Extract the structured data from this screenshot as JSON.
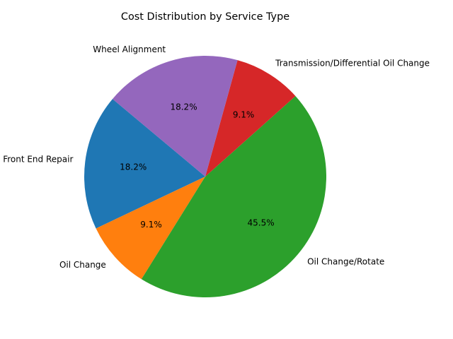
{
  "chart_data": {
    "type": "pie",
    "title": "Cost Distribution by Service Type",
    "slices": [
      {
        "label": "Front End Repair",
        "value": 18.2,
        "pct_label": "18.2%",
        "color": "#1f77b4"
      },
      {
        "label": "Oil Change",
        "value": 9.1,
        "pct_label": "9.1%",
        "color": "#ff7f0e"
      },
      {
        "label": "Oil Change/Rotate",
        "value": 45.5,
        "pct_label": "45.5%",
        "color": "#2ca02c"
      },
      {
        "label": "Transmission/Differential Oil Change",
        "value": 9.1,
        "pct_label": "9.1%",
        "color": "#d62728"
      },
      {
        "label": "Wheel Alignment",
        "value": 18.2,
        "pct_label": "18.2%",
        "color": "#9467bd"
      }
    ],
    "start_angle_deg": 140,
    "direction": "counterclockwise",
    "legend": "none"
  }
}
